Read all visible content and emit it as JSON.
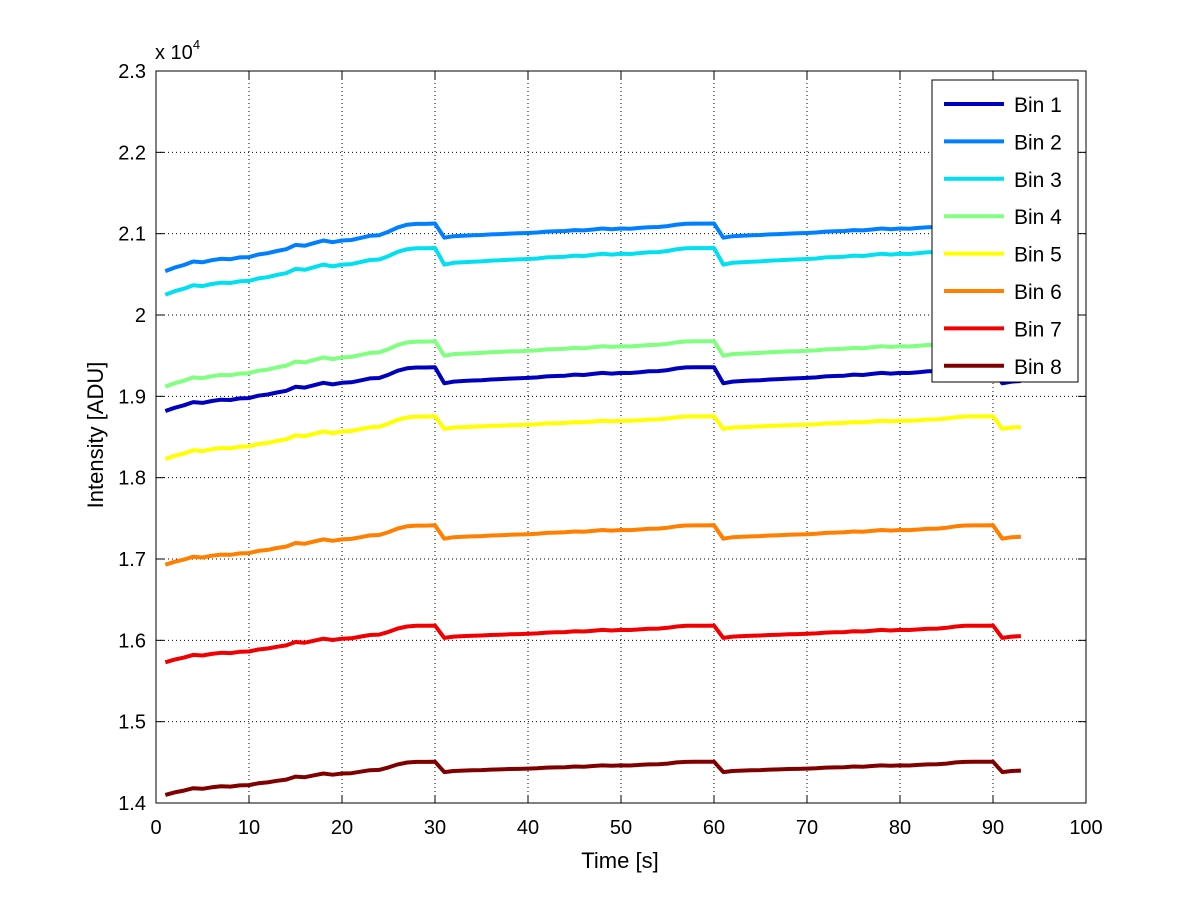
{
  "chart_data": {
    "type": "line",
    "title": "",
    "xlabel": "Time [s]",
    "ylabel": "Intensity [ADU]",
    "y_exponent_label": "x 10",
    "y_exponent_power": "4",
    "xlim": [
      0,
      100
    ],
    "ylim": [
      1.4,
      2.3
    ],
    "xticks": [
      0,
      10,
      20,
      30,
      40,
      50,
      60,
      70,
      80,
      90,
      100
    ],
    "xtick_labels": [
      "0",
      "10",
      "20",
      "30",
      "40",
      "50",
      "60",
      "70",
      "80",
      "90",
      "100"
    ],
    "yticks": [
      1.4,
      1.5,
      1.6,
      1.7,
      1.8,
      1.9,
      2.0,
      2.1,
      2.2,
      2.3
    ],
    "ytick_labels": [
      "1.4",
      "1.5",
      "1.6",
      "1.7",
      "1.8",
      "1.9",
      "2",
      "2.1",
      "2.2",
      "2.3"
    ],
    "grid": true,
    "legend_position": "top-right",
    "x_start": 1,
    "x_end": 93,
    "base_profile": [
      0.0,
      0.2,
      0.35,
      0.55,
      0.5,
      0.62,
      0.7,
      0.68,
      0.78,
      0.8,
      0.95,
      1.02,
      1.15,
      1.25,
      1.5,
      1.45,
      1.6,
      1.75,
      1.65,
      1.75,
      1.78,
      1.9,
      2.02,
      2.05,
      2.25,
      2.5,
      2.65,
      2.7,
      2.7,
      2.72
    ],
    "profile_offsets": [
      0.0,
      0.25,
      0.33,
      0.4,
      0.45,
      0.55,
      0.6,
      0.68,
      0.72,
      0.78,
      0.85,
      1.0,
      1.05,
      1.1,
      1.25,
      1.2,
      1.35,
      1.5,
      1.4,
      1.5,
      1.48,
      1.6,
      1.72,
      1.75,
      1.9,
      2.15,
      2.28,
      2.3,
      2.3,
      2.32
    ],
    "series": [
      {
        "name": "Bin 1",
        "color": "#0000bf",
        "start": 1.882,
        "span": 0.0198,
        "bottom": 1.916
      },
      {
        "name": "Bin 2",
        "color": "#0080ff",
        "start": 2.054,
        "span": 0.0215,
        "bottom": 2.095
      },
      {
        "name": "Bin 3",
        "color": "#00e0f0",
        "start": 2.025,
        "span": 0.0211,
        "bottom": 2.062
      },
      {
        "name": "Bin 4",
        "color": "#80ff80",
        "start": 1.912,
        "span": 0.0205,
        "bottom": 1.95
      },
      {
        "name": "Bin 5",
        "color": "#ffff00",
        "start": 1.823,
        "span": 0.0193,
        "bottom": 1.86
      },
      {
        "name": "Bin 6",
        "color": "#ff8000",
        "start": 1.693,
        "span": 0.0178,
        "bottom": 1.725
      },
      {
        "name": "Bin 7",
        "color": "#f00000",
        "start": 1.573,
        "span": 0.0166,
        "bottom": 1.603
      },
      {
        "name": "Bin 8",
        "color": "#800000",
        "start": 1.41,
        "span": 0.015,
        "bottom": 1.438
      }
    ]
  }
}
